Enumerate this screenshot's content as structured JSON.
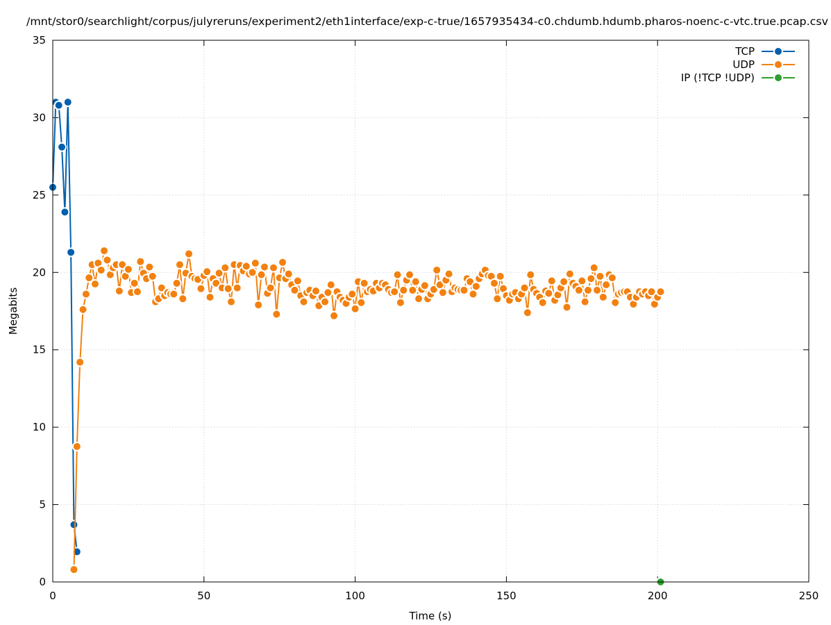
{
  "chart_data": {
    "type": "line",
    "title": "/mnt/stor0/searchlight/corpus/julyreruns/experiment2/eth1interface/exp-c-true/1657935434-c0.chdumb.hdumb.pharos-noenc-c-vtc.true.pcap.csv",
    "x_label": "Time (s)",
    "y_label": "Megabits",
    "xlim": [
      0,
      250
    ],
    "xticks": [
      0,
      50,
      100,
      150,
      200,
      250
    ],
    "ylim": [
      0,
      35
    ],
    "yticks": [
      0,
      5,
      10,
      15,
      20,
      25,
      30,
      35
    ],
    "grid": true,
    "legend": "top-right",
    "series": [
      {
        "name": "TCP",
        "color": "#0060ad",
        "x": [
          0,
          1,
          2,
          3,
          4,
          5,
          6,
          7,
          8
        ],
        "values": [
          25.5,
          31.0,
          30.8,
          28.1,
          23.9,
          31.0,
          21.3,
          3.7,
          1.95
        ]
      },
      {
        "name": "UDP",
        "color": "#f28110",
        "x": [
          7,
          8,
          9,
          10,
          11,
          12,
          13,
          14,
          15,
          16,
          17,
          18,
          19,
          20,
          21,
          22,
          23,
          24,
          25,
          26,
          27,
          28,
          29,
          30,
          31,
          32,
          33,
          34,
          35,
          36,
          37,
          38,
          39,
          40,
          41,
          42,
          43,
          44,
          45,
          46,
          47,
          48,
          49,
          50,
          51,
          52,
          53,
          54,
          55,
          56,
          57,
          58,
          59,
          60,
          61,
          62,
          63,
          64,
          65,
          66,
          67,
          68,
          69,
          70,
          71,
          72,
          73,
          74,
          75,
          76,
          77,
          78,
          79,
          80,
          81,
          82,
          83,
          84,
          85,
          86,
          87,
          88,
          89,
          90,
          91,
          92,
          93,
          94,
          95,
          96,
          97,
          98,
          99,
          100,
          101,
          102,
          103,
          104,
          105,
          106,
          107,
          108,
          109,
          110,
          111,
          112,
          113,
          114,
          115,
          116,
          117,
          118,
          119,
          120,
          121,
          122,
          123,
          124,
          125,
          126,
          127,
          128,
          129,
          130,
          131,
          132,
          133,
          134,
          135,
          136,
          137,
          138,
          139,
          140,
          141,
          142,
          143,
          144,
          145,
          146,
          147,
          148,
          149,
          150,
          151,
          152,
          153,
          154,
          155,
          156,
          157,
          158,
          159,
          160,
          161,
          162,
          163,
          164,
          165,
          166,
          167,
          168,
          169,
          170,
          171,
          172,
          173,
          174,
          175,
          176,
          177,
          178,
          179,
          180,
          181,
          182,
          183,
          184,
          185,
          186,
          187,
          188,
          189,
          190,
          191,
          192,
          193,
          194,
          195,
          196,
          197,
          198,
          199,
          200,
          201
        ],
        "values": [
          0.8,
          8.75,
          14.2,
          17.6,
          18.6,
          19.65,
          20.5,
          19.25,
          20.6,
          20.15,
          21.4,
          20.8,
          19.85,
          20.3,
          20.5,
          18.8,
          20.5,
          19.75,
          20.2,
          18.7,
          19.3,
          18.75,
          20.7,
          19.95,
          19.6,
          20.35,
          19.75,
          18.1,
          18.3,
          19.0,
          18.5,
          18.7,
          18.6,
          18.6,
          19.3,
          20.5,
          18.3,
          19.95,
          21.2,
          19.75,
          19.6,
          19.55,
          18.95,
          19.8,
          20.05,
          18.4,
          19.6,
          19.3,
          19.95,
          19.0,
          20.3,
          18.95,
          18.1,
          20.5,
          19.0,
          20.45,
          20.1,
          20.4,
          19.9,
          20.0,
          20.6,
          17.9,
          19.85,
          20.35,
          18.65,
          19.0,
          20.3,
          17.3,
          19.65,
          20.65,
          19.6,
          19.9,
          19.2,
          18.85,
          19.45,
          18.5,
          18.1,
          18.7,
          18.85,
          18.5,
          18.8,
          17.85,
          18.4,
          18.1,
          18.7,
          19.2,
          17.2,
          18.75,
          18.4,
          18.2,
          18.0,
          18.4,
          18.6,
          17.65,
          19.4,
          18.05,
          19.3,
          18.75,
          18.9,
          18.8,
          19.3,
          19.0,
          19.3,
          19.2,
          18.9,
          18.7,
          18.75,
          19.85,
          18.05,
          18.85,
          19.5,
          19.85,
          18.85,
          19.4,
          18.3,
          18.9,
          19.15,
          18.3,
          18.6,
          18.9,
          20.15,
          19.2,
          18.7,
          19.5,
          19.9,
          18.75,
          19.0,
          18.9,
          18.85,
          18.85,
          19.6,
          19.4,
          18.6,
          19.1,
          19.6,
          19.9,
          20.15,
          19.8,
          19.75,
          19.3,
          18.3,
          19.75,
          18.95,
          18.5,
          18.2,
          18.6,
          18.7,
          18.3,
          18.6,
          19.0,
          17.4,
          19.85,
          18.9,
          18.65,
          18.4,
          18.05,
          18.8,
          18.65,
          19.45,
          18.2,
          18.55,
          19.0,
          19.4,
          17.75,
          19.9,
          19.3,
          19.1,
          18.85,
          19.45,
          18.1,
          18.85,
          19.6,
          20.3,
          18.85,
          19.75,
          18.4,
          19.2,
          19.85,
          19.65,
          18.05,
          18.6,
          18.7,
          18.75,
          18.75,
          18.4,
          17.95,
          18.4,
          18.75,
          18.6,
          18.75,
          18.5,
          18.75,
          17.95,
          18.4,
          18.75
        ]
      },
      {
        "name": "IP (!TCP  !UDP)",
        "color": "#2ca02c",
        "x": [
          201
        ],
        "values": [
          0
        ]
      }
    ]
  }
}
